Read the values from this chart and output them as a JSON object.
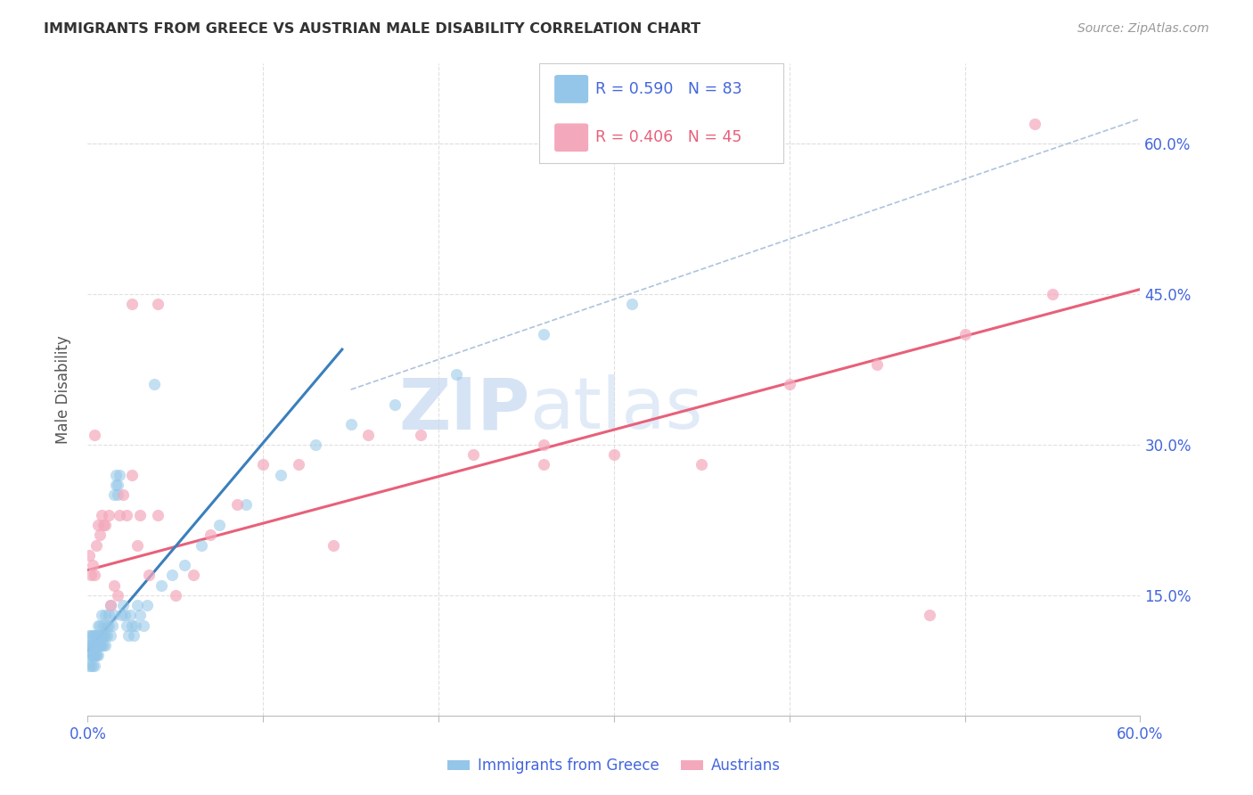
{
  "title": "IMMIGRANTS FROM GREECE VS AUSTRIAN MALE DISABILITY CORRELATION CHART",
  "source": "Source: ZipAtlas.com",
  "ylabel": "Male Disability",
  "xlim": [
    0.0,
    0.6
  ],
  "ylim": [
    0.03,
    0.68
  ],
  "ytick_values": [
    0.15,
    0.3,
    0.45,
    0.6
  ],
  "xtick_values": [
    0.0,
    0.1,
    0.2,
    0.3,
    0.4,
    0.5,
    0.6
  ],
  "legend_blue_r": "R = 0.590",
  "legend_blue_n": "N = 83",
  "legend_pink_r": "R = 0.406",
  "legend_pink_n": "N = 45",
  "legend_label_blue": "Immigrants from Greece",
  "legend_label_pink": "Austrians",
  "blue_color": "#93c6e8",
  "pink_color": "#f4a8bc",
  "blue_line_color": "#3a7fbc",
  "pink_line_color": "#e8607a",
  "text_color": "#4466dd",
  "title_color": "#333333",
  "watermark_text": "ZIP",
  "watermark_text2": "atlas",
  "blue_scatter_x": [
    0.001,
    0.001,
    0.001,
    0.001,
    0.002,
    0.002,
    0.002,
    0.002,
    0.002,
    0.003,
    0.003,
    0.003,
    0.003,
    0.003,
    0.003,
    0.004,
    0.004,
    0.004,
    0.004,
    0.004,
    0.005,
    0.005,
    0.005,
    0.005,
    0.005,
    0.006,
    0.006,
    0.006,
    0.006,
    0.007,
    0.007,
    0.007,
    0.007,
    0.008,
    0.008,
    0.008,
    0.009,
    0.009,
    0.009,
    0.01,
    0.01,
    0.01,
    0.011,
    0.011,
    0.012,
    0.012,
    0.013,
    0.013,
    0.014,
    0.015,
    0.015,
    0.016,
    0.016,
    0.017,
    0.017,
    0.018,
    0.019,
    0.02,
    0.021,
    0.022,
    0.023,
    0.024,
    0.025,
    0.026,
    0.027,
    0.028,
    0.03,
    0.032,
    0.034,
    0.038,
    0.042,
    0.048,
    0.055,
    0.065,
    0.075,
    0.09,
    0.11,
    0.13,
    0.15,
    0.175,
    0.21,
    0.26,
    0.31
  ],
  "blue_scatter_y": [
    0.1,
    0.09,
    0.11,
    0.08,
    0.1,
    0.09,
    0.11,
    0.08,
    0.1,
    0.09,
    0.1,
    0.08,
    0.11,
    0.09,
    0.1,
    0.09,
    0.1,
    0.11,
    0.08,
    0.1,
    0.09,
    0.1,
    0.11,
    0.1,
    0.09,
    0.1,
    0.11,
    0.12,
    0.09,
    0.1,
    0.11,
    0.1,
    0.12,
    0.11,
    0.1,
    0.13,
    0.11,
    0.1,
    0.12,
    0.11,
    0.13,
    0.1,
    0.12,
    0.11,
    0.13,
    0.12,
    0.11,
    0.14,
    0.12,
    0.13,
    0.25,
    0.26,
    0.27,
    0.26,
    0.25,
    0.27,
    0.13,
    0.14,
    0.13,
    0.12,
    0.11,
    0.13,
    0.12,
    0.11,
    0.12,
    0.14,
    0.13,
    0.12,
    0.14,
    0.36,
    0.16,
    0.17,
    0.18,
    0.2,
    0.22,
    0.24,
    0.27,
    0.3,
    0.32,
    0.34,
    0.37,
    0.41,
    0.44
  ],
  "pink_scatter_x": [
    0.001,
    0.002,
    0.003,
    0.004,
    0.004,
    0.005,
    0.006,
    0.007,
    0.008,
    0.009,
    0.01,
    0.012,
    0.013,
    0.015,
    0.017,
    0.018,
    0.02,
    0.022,
    0.025,
    0.028,
    0.03,
    0.035,
    0.04,
    0.05,
    0.06,
    0.07,
    0.085,
    0.1,
    0.12,
    0.14,
    0.16,
    0.19,
    0.22,
    0.26,
    0.3,
    0.35,
    0.4,
    0.45,
    0.5,
    0.55,
    0.025,
    0.26,
    0.04,
    0.54,
    0.48
  ],
  "pink_scatter_y": [
    0.19,
    0.17,
    0.18,
    0.17,
    0.31,
    0.2,
    0.22,
    0.21,
    0.23,
    0.22,
    0.22,
    0.23,
    0.14,
    0.16,
    0.15,
    0.23,
    0.25,
    0.23,
    0.27,
    0.2,
    0.23,
    0.17,
    0.23,
    0.15,
    0.17,
    0.21,
    0.24,
    0.28,
    0.28,
    0.2,
    0.31,
    0.31,
    0.29,
    0.28,
    0.29,
    0.28,
    0.36,
    0.38,
    0.41,
    0.45,
    0.44,
    0.3,
    0.44,
    0.62,
    0.13
  ],
  "blue_line_x": [
    0.0,
    0.145
  ],
  "blue_line_y": [
    0.095,
    0.395
  ],
  "pink_line_x": [
    0.0,
    0.6
  ],
  "pink_line_y": [
    0.175,
    0.455
  ],
  "diag_line_x": [
    0.15,
    0.6
  ],
  "diag_line_y": [
    0.355,
    0.625
  ],
  "background_color": "#ffffff",
  "grid_color": "#e0e0e0"
}
